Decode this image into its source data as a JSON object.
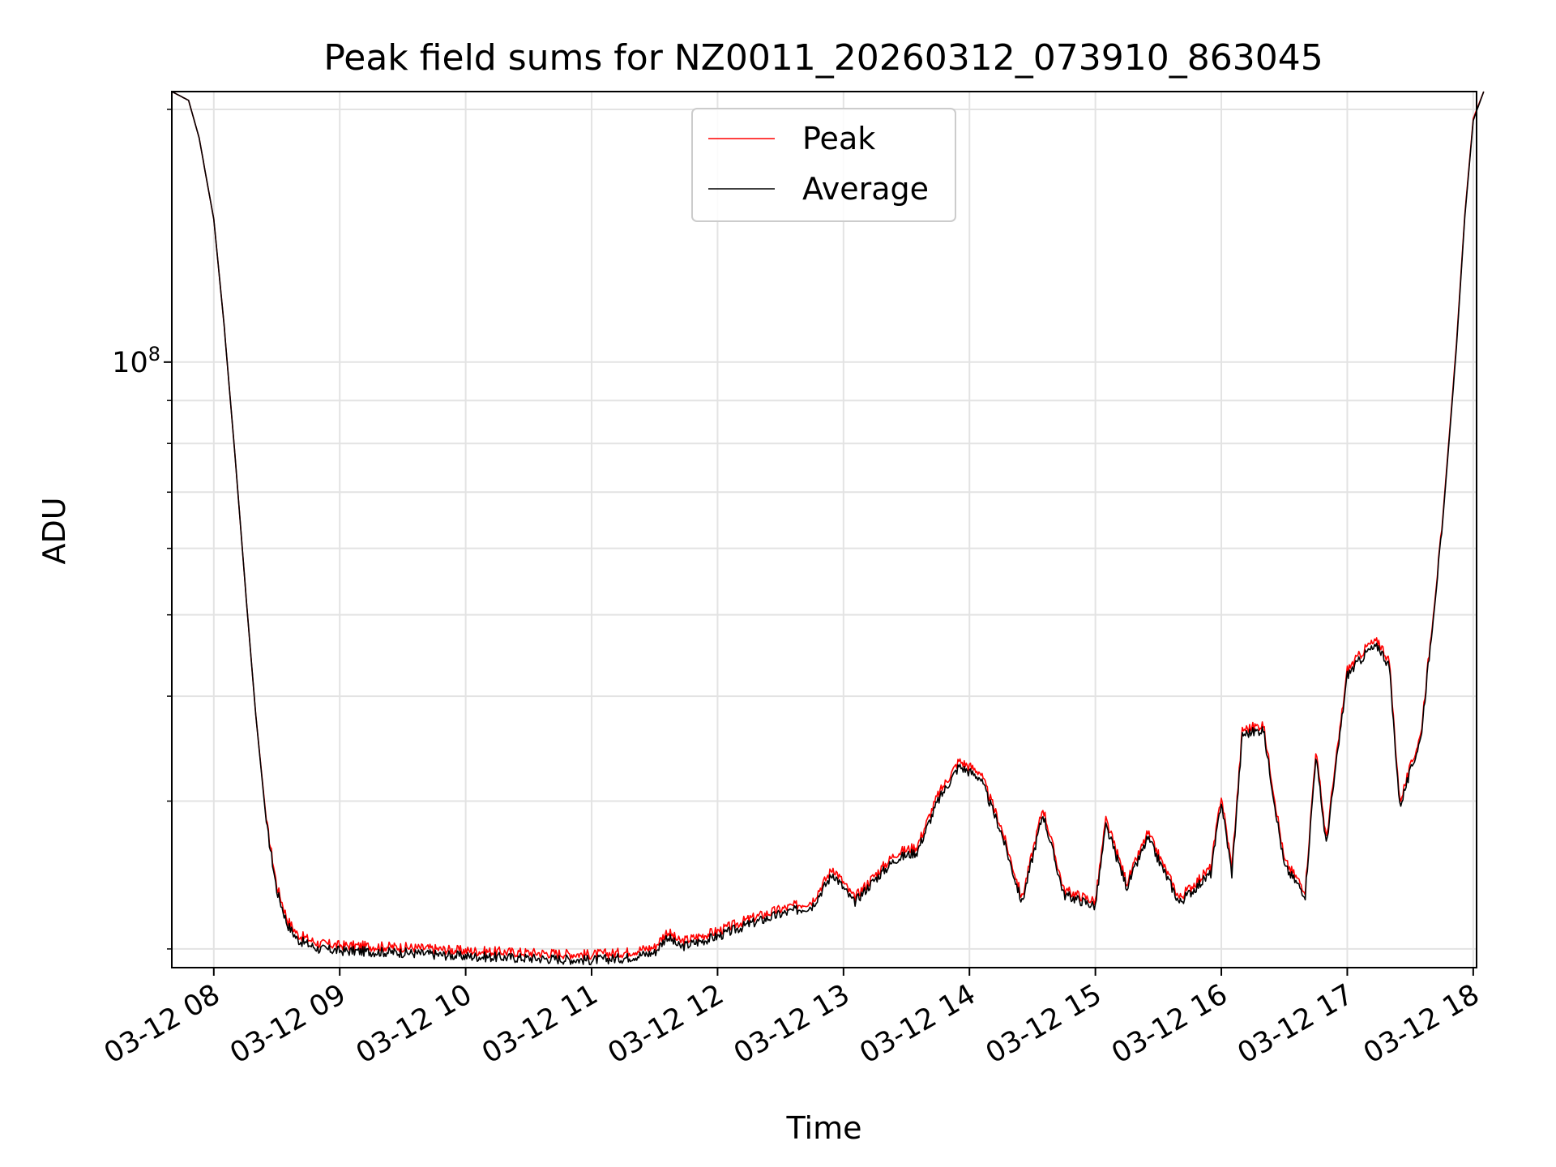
{
  "chart_data": {
    "type": "line",
    "title": "Peak field sums for NZ0011_20260312_073910_863045",
    "xlabel": "Time",
    "ylabel": "ADU",
    "yscale": "log",
    "xlim": [
      "2026-03-12 07:40",
      "2026-03-12 18:00"
    ],
    "ylim": [
      19000000,
      210000000
    ],
    "y_major_tick": {
      "value": 100000000,
      "label_base": "10",
      "label_exp": "8"
    },
    "y_minor_ticks": [
      20000000,
      30000000,
      40000000,
      50000000,
      60000000,
      70000000,
      80000000,
      90000000,
      200000000
    ],
    "x_ticks": [
      {
        "value": "2026-03-12 08:00",
        "label": "03-12 08"
      },
      {
        "value": "2026-03-12 09:00",
        "label": "03-12 09"
      },
      {
        "value": "2026-03-12 10:00",
        "label": "03-12 10"
      },
      {
        "value": "2026-03-12 11:00",
        "label": "03-12 11"
      },
      {
        "value": "2026-03-12 12:00",
        "label": "03-12 12"
      },
      {
        "value": "2026-03-12 13:00",
        "label": "03-12 13"
      },
      {
        "value": "2026-03-12 14:00",
        "label": "03-12 14"
      },
      {
        "value": "2026-03-12 15:00",
        "label": "03-12 15"
      },
      {
        "value": "2026-03-12 16:00",
        "label": "03-12 16"
      },
      {
        "value": "2026-03-12 17:00",
        "label": "03-12 17"
      },
      {
        "value": "2026-03-12 18:00",
        "label": "03-12 18"
      }
    ],
    "grid": true,
    "legend_position": "upper-center",
    "series": [
      {
        "name": "Peak",
        "color": "#ff0000",
        "points": [
          [
            "2026-03-12 07:40",
            210000000
          ],
          [
            "2026-03-12 07:48",
            205000000
          ],
          [
            "2026-03-12 07:53",
            185000000
          ],
          [
            "2026-03-12 08:00",
            148000000
          ],
          [
            "2026-03-12 08:05",
            110000000
          ],
          [
            "2026-03-12 08:10",
            78000000
          ],
          [
            "2026-03-12 08:15",
            54000000
          ],
          [
            "2026-03-12 08:20",
            38000000
          ],
          [
            "2026-03-12 08:25",
            28500000
          ],
          [
            "2026-03-12 08:30",
            23800000
          ],
          [
            "2026-03-12 08:35",
            21700000
          ],
          [
            "2026-03-12 08:40",
            20800000
          ],
          [
            "2026-03-12 08:50",
            20300000
          ],
          [
            "2026-03-12 09:00",
            20200000
          ],
          [
            "2026-03-12 09:30",
            20100000
          ],
          [
            "2026-03-12 10:00",
            19900000
          ],
          [
            "2026-03-12 10:30",
            19800000
          ],
          [
            "2026-03-12 11:00",
            19700000
          ],
          [
            "2026-03-12 11:15",
            19800000
          ],
          [
            "2026-03-12 11:30",
            20100000
          ],
          [
            "2026-03-12 11:36",
            21000000
          ],
          [
            "2026-03-12 11:42",
            20400000
          ],
          [
            "2026-03-12 12:00",
            21000000
          ],
          [
            "2026-03-12 12:15",
            21700000
          ],
          [
            "2026-03-12 12:30",
            22300000
          ],
          [
            "2026-03-12 12:45",
            22800000
          ],
          [
            "2026-03-12 12:55",
            25000000
          ],
          [
            "2026-03-12 13:05",
            23000000
          ],
          [
            "2026-03-12 13:15",
            24500000
          ],
          [
            "2026-03-12 13:25",
            26000000
          ],
          [
            "2026-03-12 13:35",
            26500000
          ],
          [
            "2026-03-12 13:45",
            30500000
          ],
          [
            "2026-03-12 13:55",
            33500000
          ],
          [
            "2026-03-12 14:05",
            32500000
          ],
          [
            "2026-03-12 14:15",
            28000000
          ],
          [
            "2026-03-12 14:25",
            23000000
          ],
          [
            "2026-03-12 14:35",
            29500000
          ],
          [
            "2026-03-12 14:45",
            23500000
          ],
          [
            "2026-03-12 15:00",
            22800000
          ],
          [
            "2026-03-12 15:05",
            28500000
          ],
          [
            "2026-03-12 15:15",
            24000000
          ],
          [
            "2026-03-12 15:25",
            27500000
          ],
          [
            "2026-03-12 15:40",
            23000000
          ],
          [
            "2026-03-12 15:55",
            25000000
          ],
          [
            "2026-03-12 16:00",
            30500000
          ],
          [
            "2026-03-12 16:05",
            25000000
          ],
          [
            "2026-03-12 16:10",
            36500000
          ],
          [
            "2026-03-12 16:20",
            37000000
          ],
          [
            "2026-03-12 16:30",
            25500000
          ],
          [
            "2026-03-12 16:40",
            23500000
          ],
          [
            "2026-03-12 16:45",
            34500000
          ],
          [
            "2026-03-12 16:50",
            27000000
          ],
          [
            "2026-03-12 17:00",
            43000000
          ],
          [
            "2026-03-12 17:10",
            46000000
          ],
          [
            "2026-03-12 17:15",
            46500000
          ],
          [
            "2026-03-12 17:20",
            44000000
          ],
          [
            "2026-03-12 17:25",
            30000000
          ],
          [
            "2026-03-12 17:35",
            36000000
          ],
          [
            "2026-03-12 17:45",
            63000000
          ],
          [
            "2026-03-12 17:52",
            105000000
          ],
          [
            "2026-03-12 17:56",
            150000000
          ],
          [
            "2026-03-12 18:00",
            195000000
          ],
          [
            "2026-03-12 18:05",
            210000000
          ]
        ]
      },
      {
        "name": "Average",
        "color": "#000000",
        "points": [
          [
            "2026-03-12 07:40",
            210000000
          ],
          [
            "2026-03-12 07:48",
            205000000
          ],
          [
            "2026-03-12 07:53",
            185000000
          ],
          [
            "2026-03-12 08:00",
            148000000
          ],
          [
            "2026-03-12 08:05",
            110000000
          ],
          [
            "2026-03-12 08:10",
            78000000
          ],
          [
            "2026-03-12 08:15",
            54000000
          ],
          [
            "2026-03-12 08:20",
            38000000
          ],
          [
            "2026-03-12 08:25",
            28300000
          ],
          [
            "2026-03-12 08:30",
            23500000
          ],
          [
            "2026-03-12 08:35",
            21400000
          ],
          [
            "2026-03-12 08:40",
            20500000
          ],
          [
            "2026-03-12 08:50",
            20000000
          ],
          [
            "2026-03-12 09:00",
            19900000
          ],
          [
            "2026-03-12 09:30",
            19800000
          ],
          [
            "2026-03-12 10:00",
            19600000
          ],
          [
            "2026-03-12 10:30",
            19500000
          ],
          [
            "2026-03-12 11:00",
            19400000
          ],
          [
            "2026-03-12 11:15",
            19500000
          ],
          [
            "2026-03-12 11:30",
            19800000
          ],
          [
            "2026-03-12 11:36",
            20700000
          ],
          [
            "2026-03-12 11:42",
            20100000
          ],
          [
            "2026-03-12 12:00",
            20700000
          ],
          [
            "2026-03-12 12:15",
            21400000
          ],
          [
            "2026-03-12 12:30",
            22000000
          ],
          [
            "2026-03-12 12:45",
            22500000
          ],
          [
            "2026-03-12 12:55",
            24600000
          ],
          [
            "2026-03-12 13:05",
            22700000
          ],
          [
            "2026-03-12 13:15",
            24200000
          ],
          [
            "2026-03-12 13:25",
            25600000
          ],
          [
            "2026-03-12 13:35",
            26100000
          ],
          [
            "2026-03-12 13:45",
            30000000
          ],
          [
            "2026-03-12 13:55",
            33000000
          ],
          [
            "2026-03-12 14:05",
            32000000
          ],
          [
            "2026-03-12 14:15",
            27600000
          ],
          [
            "2026-03-12 14:25",
            22700000
          ],
          [
            "2026-03-12 14:35",
            29000000
          ],
          [
            "2026-03-12 14:45",
            23200000
          ],
          [
            "2026-03-12 15:00",
            22500000
          ],
          [
            "2026-03-12 15:05",
            28000000
          ],
          [
            "2026-03-12 15:15",
            23700000
          ],
          [
            "2026-03-12 15:25",
            27100000
          ],
          [
            "2026-03-12 15:40",
            22700000
          ],
          [
            "2026-03-12 15:55",
            24600000
          ],
          [
            "2026-03-12 16:00",
            30000000
          ],
          [
            "2026-03-12 16:05",
            24600000
          ],
          [
            "2026-03-12 16:10",
            36000000
          ],
          [
            "2026-03-12 16:20",
            36500000
          ],
          [
            "2026-03-12 16:30",
            25100000
          ],
          [
            "2026-03-12 16:40",
            23200000
          ],
          [
            "2026-03-12 16:45",
            34000000
          ],
          [
            "2026-03-12 16:50",
            26600000
          ],
          [
            "2026-03-12 17:00",
            42400000
          ],
          [
            "2026-03-12 17:10",
            45300000
          ],
          [
            "2026-03-12 17:15",
            45800000
          ],
          [
            "2026-03-12 17:20",
            43400000
          ],
          [
            "2026-03-12 17:25",
            29600000
          ],
          [
            "2026-03-12 17:35",
            35600000
          ],
          [
            "2026-03-12 17:45",
            62500000
          ],
          [
            "2026-03-12 17:52",
            104000000
          ],
          [
            "2026-03-12 17:56",
            149000000
          ],
          [
            "2026-03-12 18:00",
            194000000
          ],
          [
            "2026-03-12 18:05",
            210000000
          ]
        ]
      }
    ]
  }
}
